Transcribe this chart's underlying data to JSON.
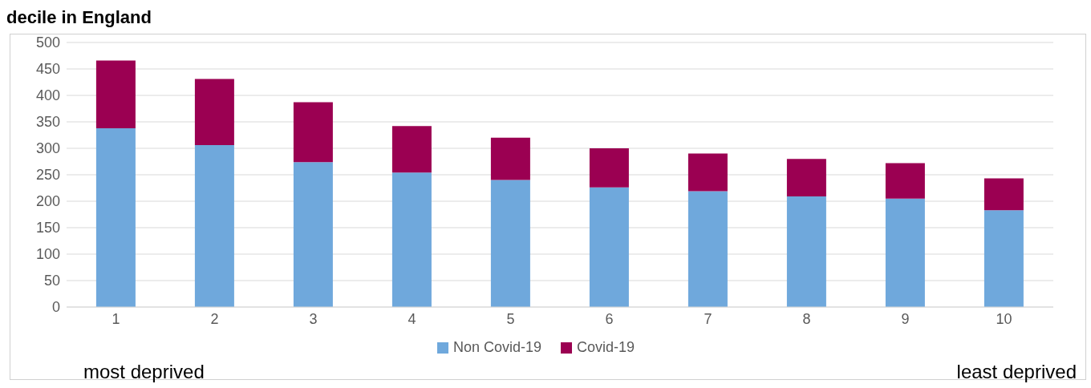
{
  "chart_data": {
    "type": "bar",
    "title": "decile in England",
    "categories": [
      "1",
      "2",
      "3",
      "4",
      "5",
      "6",
      "7",
      "8",
      "9",
      "10"
    ],
    "stacked": true,
    "series": [
      {
        "name": "Non Covid-19",
        "color": "#6fa8dc",
        "values": [
          338,
          306,
          274,
          254,
          240,
          226,
          219,
          209,
          205,
          183
        ]
      },
      {
        "name": "Covid-19",
        "color": "#9b0052",
        "values": [
          128,
          125,
          113,
          88,
          80,
          74,
          71,
          71,
          67,
          60
        ]
      }
    ],
    "ylim": [
      0,
      500
    ],
    "yticks": [
      0,
      50,
      100,
      150,
      200,
      250,
      300,
      350,
      400,
      450,
      500
    ],
    "grid": "y",
    "legend": "bottom",
    "annotations": [
      "most deprived",
      "least deprived"
    ]
  }
}
